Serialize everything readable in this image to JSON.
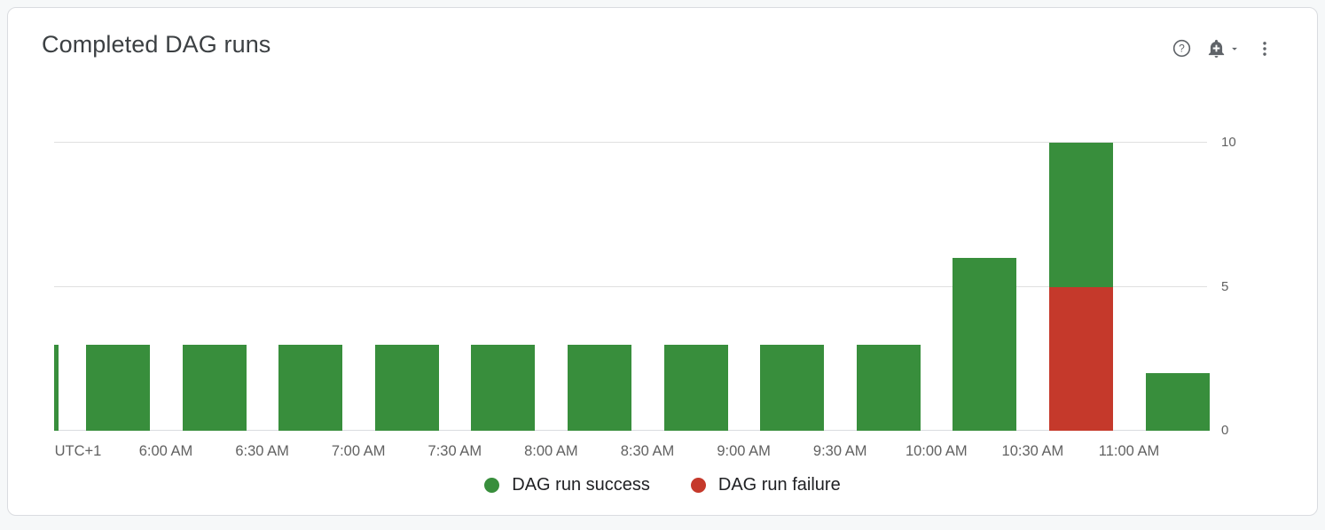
{
  "card": {
    "title": "Completed DAG runs"
  },
  "toolbar": {
    "help_icon": "help-outline",
    "alert_icon": "add-alert",
    "caret_icon": "chevron-down",
    "menu_icon": "more-vert"
  },
  "colors": {
    "success": "#388E3C",
    "failure": "#C5392B",
    "grid": "#e0e0e0",
    "axis_text": "#616161",
    "legend_text": "#202124",
    "icon": "#5f6368"
  },
  "chart_data": {
    "type": "bar",
    "stacked": true,
    "title": "Completed DAG runs",
    "x_ticks": [
      "UTC+1",
      "6:00 AM",
      "6:30 AM",
      "7:00 AM",
      "7:30 AM",
      "8:00 AM",
      "8:30 AM",
      "9:00 AM",
      "9:30 AM",
      "10:00 AM",
      "10:30 AM",
      "11:00 AM"
    ],
    "y_ticks": [
      0,
      5,
      10
    ],
    "ylim": [
      0,
      10
    ],
    "grid": true,
    "legend_position": "bottom",
    "first_bar_clipped": true,
    "series": [
      {
        "name": "DAG run success",
        "color": "#388E3C",
        "values": [
          3,
          3,
          3,
          3,
          3,
          3,
          3,
          3,
          3,
          3,
          6,
          5,
          2
        ]
      },
      {
        "name": "DAG run failure",
        "color": "#C5392B",
        "values": [
          0,
          0,
          0,
          0,
          0,
          0,
          0,
          0,
          0,
          0,
          0,
          5,
          0
        ]
      }
    ],
    "legend": [
      "DAG run success",
      "DAG run failure"
    ]
  }
}
